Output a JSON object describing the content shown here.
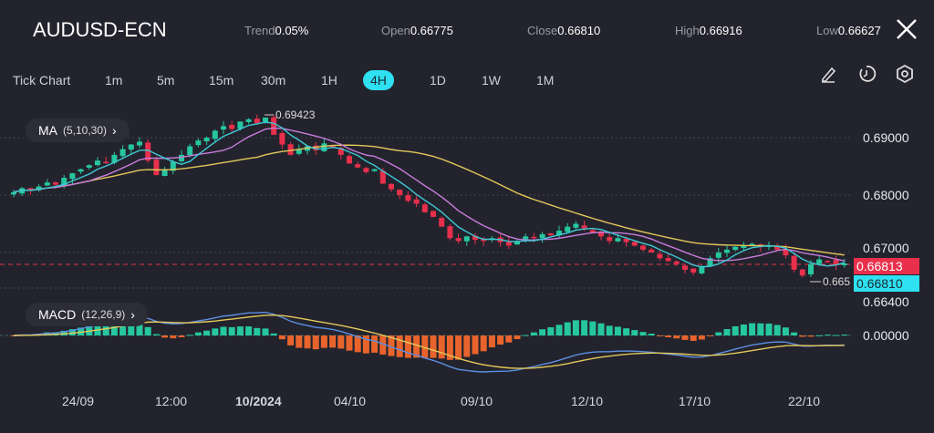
{
  "header": {
    "symbol": "AUDUSD-ECN",
    "stats": [
      {
        "label": "Trend",
        "value": "0.05%"
      },
      {
        "label": "Open",
        "value": "0.66775"
      },
      {
        "label": "Close",
        "value": "0.66810"
      },
      {
        "label": "High",
        "value": "0.66916"
      },
      {
        "label": "Low",
        "value": "0.66627"
      }
    ]
  },
  "timeframes": [
    "Tick Chart",
    "1m",
    "5m",
    "15m",
    "30m",
    "1H",
    "4H",
    "1D",
    "1W",
    "1M"
  ],
  "active_timeframe": "4H",
  "indicators": {
    "ma_label": "MA",
    "ma_params": "(5,10,30)",
    "macd_label": "MACD",
    "macd_params": "(12,26,9)"
  },
  "colors": {
    "up": "#26c7a0",
    "down": "#e8304c",
    "ma5": "#3ec9d6",
    "ma10": "#c77ddb",
    "ma30": "#e3c85a",
    "accent": "#2ee0f0"
  },
  "chart_data": {
    "type": "candlestick",
    "y_ticks": [
      "0.69000",
      "0.68000",
      "0.67000",
      "0.66400",
      "0.00000"
    ],
    "x_ticks": [
      "24/09",
      "12:00",
      "10/2024",
      "04/10",
      "09/10",
      "12/10",
      "17/10",
      "22/10"
    ],
    "high_marker": "0.69423",
    "low_marker": "0.665",
    "last_price_tag": "0.66813",
    "bid_tag": "0.66810",
    "closes": [
      0.6805,
      0.6812,
      0.6808,
      0.6815,
      0.6822,
      0.6818,
      0.683,
      0.6838,
      0.6845,
      0.6852,
      0.686,
      0.6858,
      0.687,
      0.688,
      0.6888,
      0.6893,
      0.686,
      0.6835,
      0.6845,
      0.6858,
      0.687,
      0.6885,
      0.6895,
      0.69,
      0.6912,
      0.692,
      0.6915,
      0.6928,
      0.6932,
      0.6925,
      0.6935,
      0.6905,
      0.6888,
      0.687,
      0.688,
      0.6885,
      0.6878,
      0.689,
      0.6882,
      0.687,
      0.6855,
      0.6848,
      0.684,
      0.6845,
      0.682,
      0.681,
      0.68,
      0.679,
      0.6785,
      0.677,
      0.6762,
      0.6745,
      0.6725,
      0.672,
      0.6728,
      0.6722,
      0.672,
      0.6725,
      0.6718,
      0.6712,
      0.672,
      0.6728,
      0.6725,
      0.6732,
      0.673,
      0.6738,
      0.6745,
      0.675,
      0.6742,
      0.6735,
      0.6728,
      0.672,
      0.6725,
      0.6718,
      0.6712,
      0.6705,
      0.67,
      0.669,
      0.6685,
      0.668,
      0.667,
      0.6665,
      0.6675,
      0.669,
      0.67,
      0.6705,
      0.671,
      0.6712,
      0.6715,
      0.671,
      0.6712,
      0.6705,
      0.6695,
      0.667,
      0.666,
      0.668,
      0.6688,
      0.6685,
      0.6678,
      0.6681
    ]
  }
}
